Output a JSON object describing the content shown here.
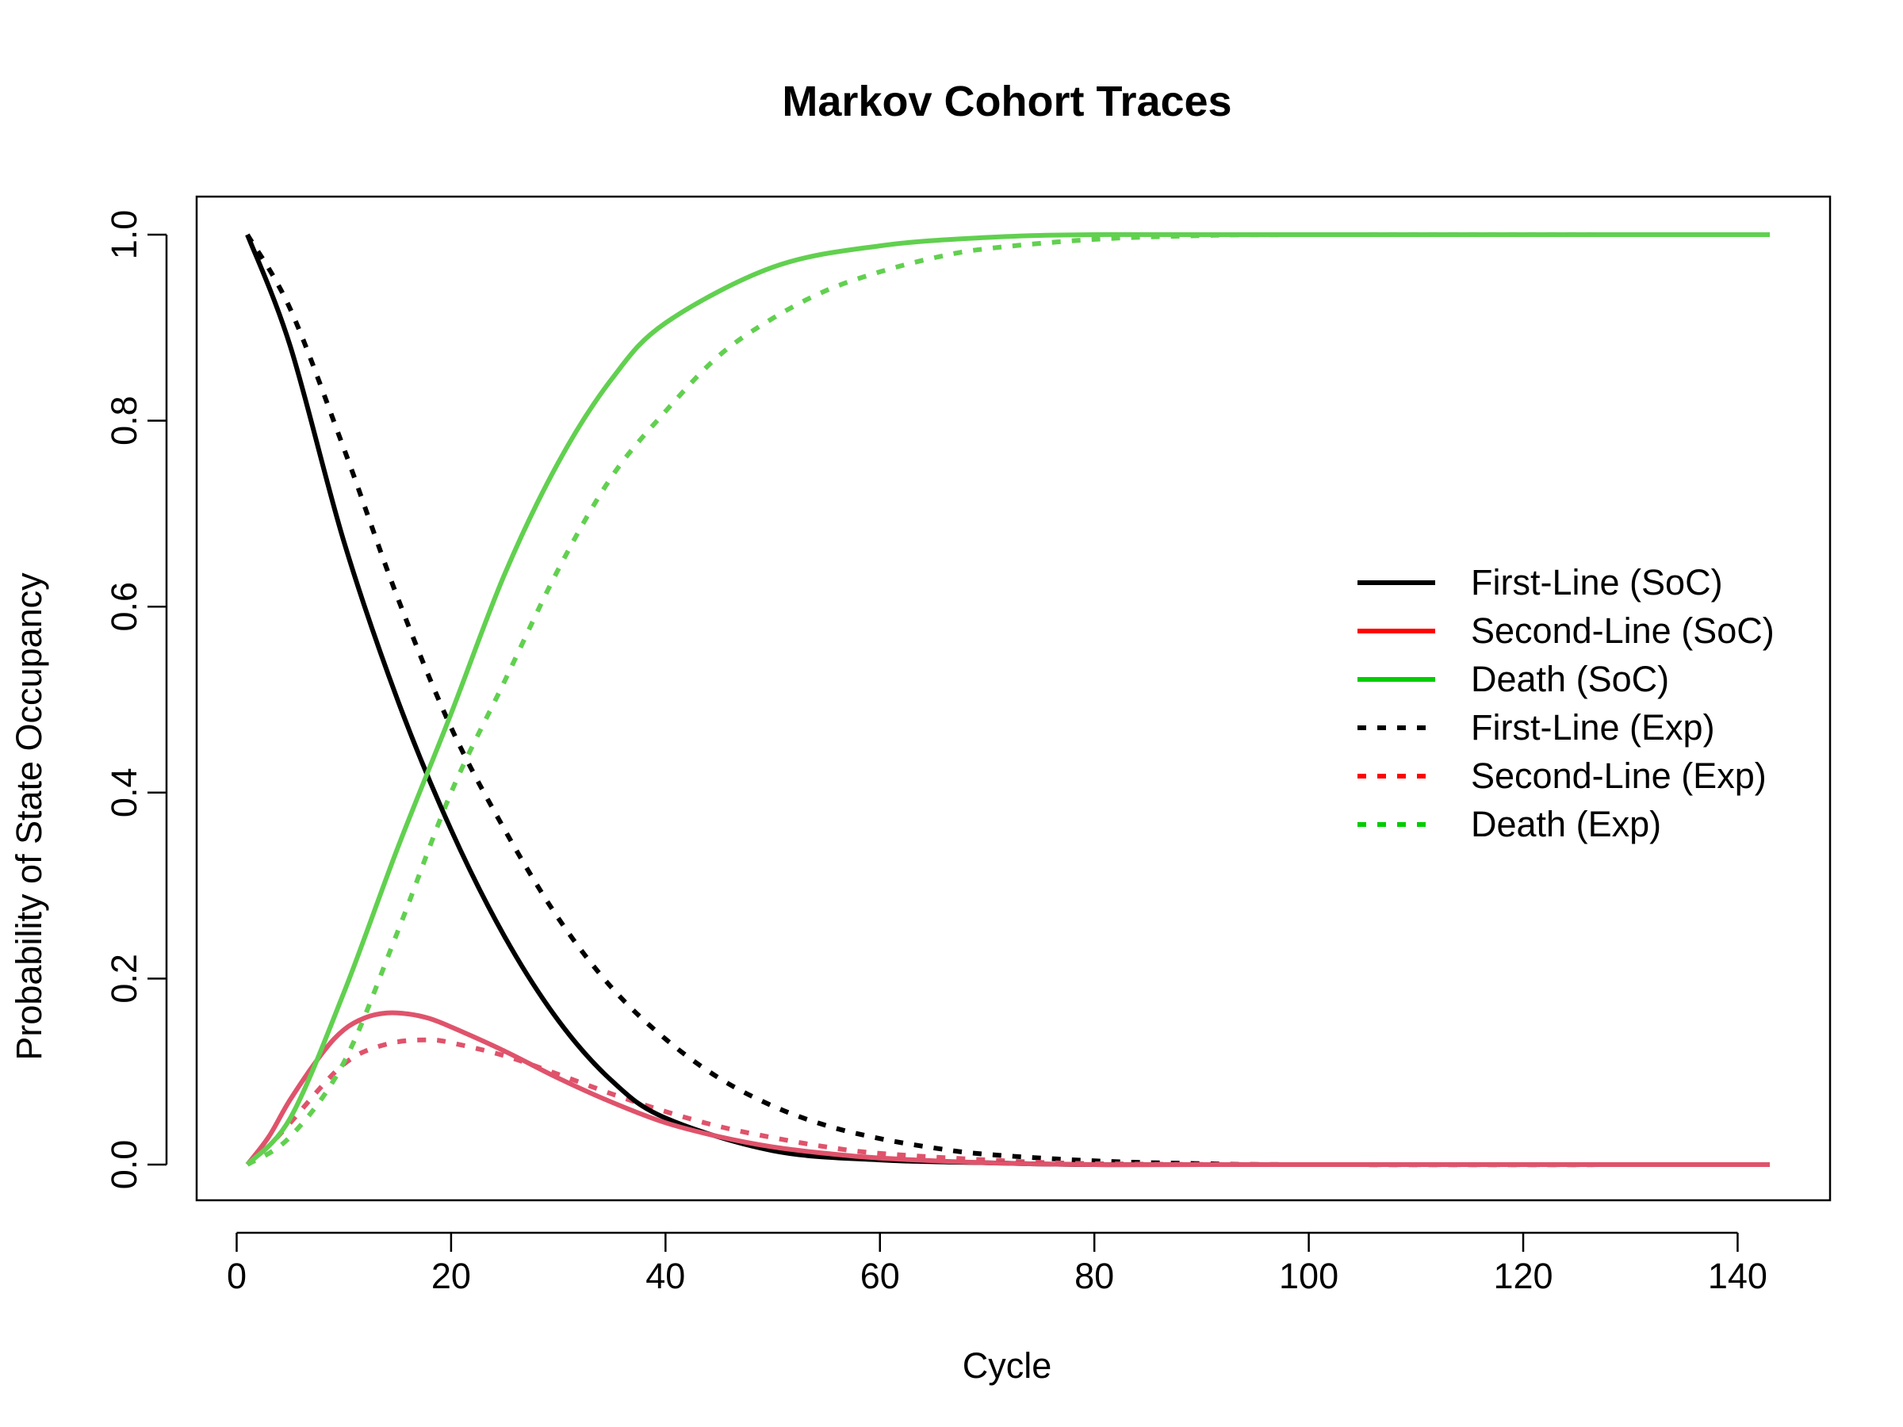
{
  "chart_data": {
    "type": "line",
    "title": "Markov Cohort Traces",
    "xlabel": "Cycle",
    "ylabel": "Probability of State Occupancy",
    "xlim": [
      1,
      143
    ],
    "ylim": [
      0,
      1
    ],
    "x_ticks": [
      "0",
      "20",
      "40",
      "60",
      "80",
      "100",
      "120",
      "140"
    ],
    "y_ticks": [
      "0.0",
      "0.2",
      "0.4",
      "0.6",
      "0.8",
      "1.0"
    ],
    "grid": false,
    "legend_position": "right",
    "series": [
      {
        "name": "First-Line (SoC)",
        "color": "#000000",
        "linestyle": "solid",
        "legend_color": "#000000",
        "x": [
          1,
          5,
          10,
          15,
          20,
          25,
          30,
          35,
          40,
          50,
          60,
          70,
          80,
          100,
          143
        ],
        "y": [
          1.0,
          0.88,
          0.67,
          0.5,
          0.36,
          0.245,
          0.155,
          0.09,
          0.05,
          0.015,
          0.005,
          0.002,
          0.0,
          0.0,
          0.0
        ]
      },
      {
        "name": "Second-Line (SoC)",
        "color": "#DF536B",
        "linestyle": "solid",
        "legend_color": "#FF0000",
        "x": [
          1,
          3,
          5,
          8,
          10,
          12,
          14,
          16,
          18,
          20,
          25,
          30,
          35,
          40,
          45,
          50,
          55,
          60,
          70,
          80,
          100,
          143
        ],
        "y": [
          0.0,
          0.03,
          0.07,
          0.12,
          0.145,
          0.158,
          0.163,
          0.162,
          0.157,
          0.148,
          0.122,
          0.093,
          0.067,
          0.045,
          0.03,
          0.019,
          0.012,
          0.007,
          0.002,
          0.0,
          0.0,
          0.0
        ]
      },
      {
        "name": "Death (SoC)",
        "color": "#61D04F",
        "linestyle": "solid",
        "legend_color": "#00CD00",
        "x": [
          1,
          5,
          10,
          15,
          20,
          25,
          30,
          35,
          40,
          50,
          60,
          70,
          80,
          100,
          143
        ],
        "y": [
          0.0,
          0.05,
          0.185,
          0.34,
          0.485,
          0.635,
          0.755,
          0.845,
          0.905,
          0.965,
          0.988,
          0.997,
          1.0,
          1.0,
          1.0
        ]
      },
      {
        "name": "First-Line (Exp)",
        "color": "#000000",
        "linestyle": "dashed",
        "legend_color": "#000000",
        "x": [
          1,
          5,
          10,
          15,
          20,
          25,
          30,
          35,
          40,
          45,
          50,
          55,
          60,
          65,
          70,
          80,
          90,
          100,
          143
        ],
        "y": [
          1.0,
          0.92,
          0.77,
          0.61,
          0.47,
          0.36,
          0.265,
          0.19,
          0.135,
          0.093,
          0.063,
          0.042,
          0.028,
          0.018,
          0.011,
          0.004,
          0.001,
          0.0,
          0.0
        ]
      },
      {
        "name": "Second-Line (Exp)",
        "color": "#DF536B",
        "linestyle": "dashed",
        "legend_color": "#FF0000",
        "x": [
          1,
          3,
          5,
          8,
          10,
          12,
          15,
          18,
          20,
          25,
          30,
          35,
          40,
          45,
          50,
          55,
          60,
          70,
          80,
          100,
          143
        ],
        "y": [
          0.0,
          0.02,
          0.045,
          0.085,
          0.108,
          0.122,
          0.132,
          0.134,
          0.131,
          0.117,
          0.097,
          0.076,
          0.057,
          0.041,
          0.029,
          0.019,
          0.012,
          0.005,
          0.001,
          0.0,
          0.0
        ]
      },
      {
        "name": "Death (Exp)",
        "color": "#61D04F",
        "linestyle": "dashed",
        "legend_color": "#00CD00",
        "x": [
          1,
          5,
          10,
          15,
          20,
          25,
          30,
          35,
          40,
          45,
          50,
          55,
          60,
          65,
          70,
          80,
          90,
          100,
          143
        ],
        "y": [
          0.0,
          0.03,
          0.11,
          0.25,
          0.4,
          0.52,
          0.64,
          0.74,
          0.81,
          0.87,
          0.91,
          0.94,
          0.96,
          0.975,
          0.985,
          0.995,
          0.999,
          1.0,
          1.0
        ]
      }
    ]
  }
}
